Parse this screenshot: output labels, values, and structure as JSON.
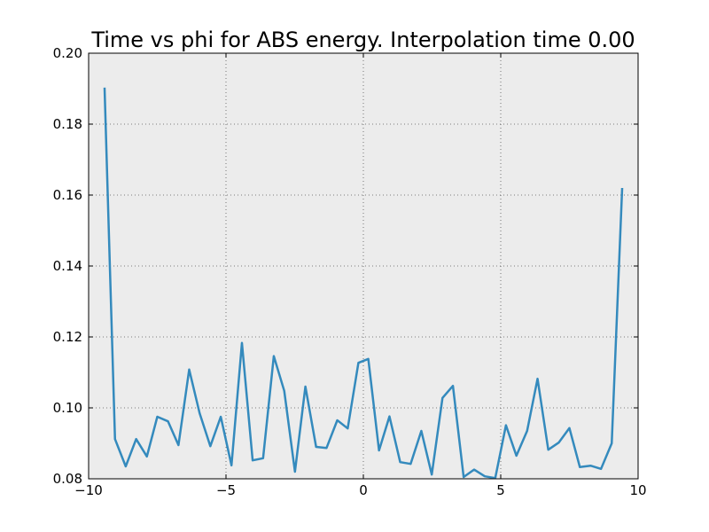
{
  "chart_data": {
    "type": "line",
    "title": "Time vs phi for ABS energy. Interpolation time 0.00",
    "xlabel": "",
    "ylabel": "",
    "xlim": [
      -10,
      10
    ],
    "ylim": [
      0.08,
      0.2
    ],
    "x_ticks": [
      -10,
      -5,
      0,
      5,
      10
    ],
    "x_tick_labels": [
      "−10",
      "−5",
      "0",
      "5",
      "10"
    ],
    "y_ticks": [
      0.08,
      0.1,
      0.12,
      0.14,
      0.16,
      0.18,
      0.2
    ],
    "y_tick_labels": [
      "0.08",
      "0.10",
      "0.12",
      "0.14",
      "0.16",
      "0.18",
      "0.20"
    ],
    "grid": true,
    "background_color": "#ececec",
    "series": [
      {
        "color": "#348abd",
        "x": [
          -9.42,
          -9.04,
          -8.65,
          -8.27,
          -7.88,
          -7.5,
          -7.11,
          -6.73,
          -6.34,
          -5.96,
          -5.57,
          -5.19,
          -4.8,
          -4.42,
          -4.03,
          -3.65,
          -3.26,
          -2.88,
          -2.49,
          -2.11,
          -1.72,
          -1.34,
          -0.95,
          -0.57,
          -0.18,
          0.18,
          0.57,
          0.95,
          1.34,
          1.72,
          2.11,
          2.49,
          2.88,
          3.26,
          3.65,
          4.03,
          4.42,
          4.8,
          5.19,
          5.57,
          5.96,
          6.34,
          6.73,
          7.11,
          7.5,
          7.88,
          8.27,
          8.65,
          9.04,
          9.42
        ],
        "y": [
          0.1903,
          0.0912,
          0.0835,
          0.0912,
          0.0863,
          0.0975,
          0.0962,
          0.0895,
          0.1108,
          0.0985,
          0.0892,
          0.0975,
          0.0838,
          0.1183,
          0.0852,
          0.0858,
          0.1146,
          0.1048,
          0.082,
          0.106,
          0.089,
          0.0887,
          0.0965,
          0.0942,
          0.1127,
          0.1138,
          0.088,
          0.0976,
          0.0847,
          0.0842,
          0.0935,
          0.0812,
          0.1028,
          0.1062,
          0.0805,
          0.0826,
          0.0807,
          0.0802,
          0.0951,
          0.0865,
          0.0935,
          0.1082,
          0.0882,
          0.0902,
          0.0943,
          0.0833,
          0.0837,
          0.0828,
          0.09,
          0.162
        ]
      }
    ]
  }
}
